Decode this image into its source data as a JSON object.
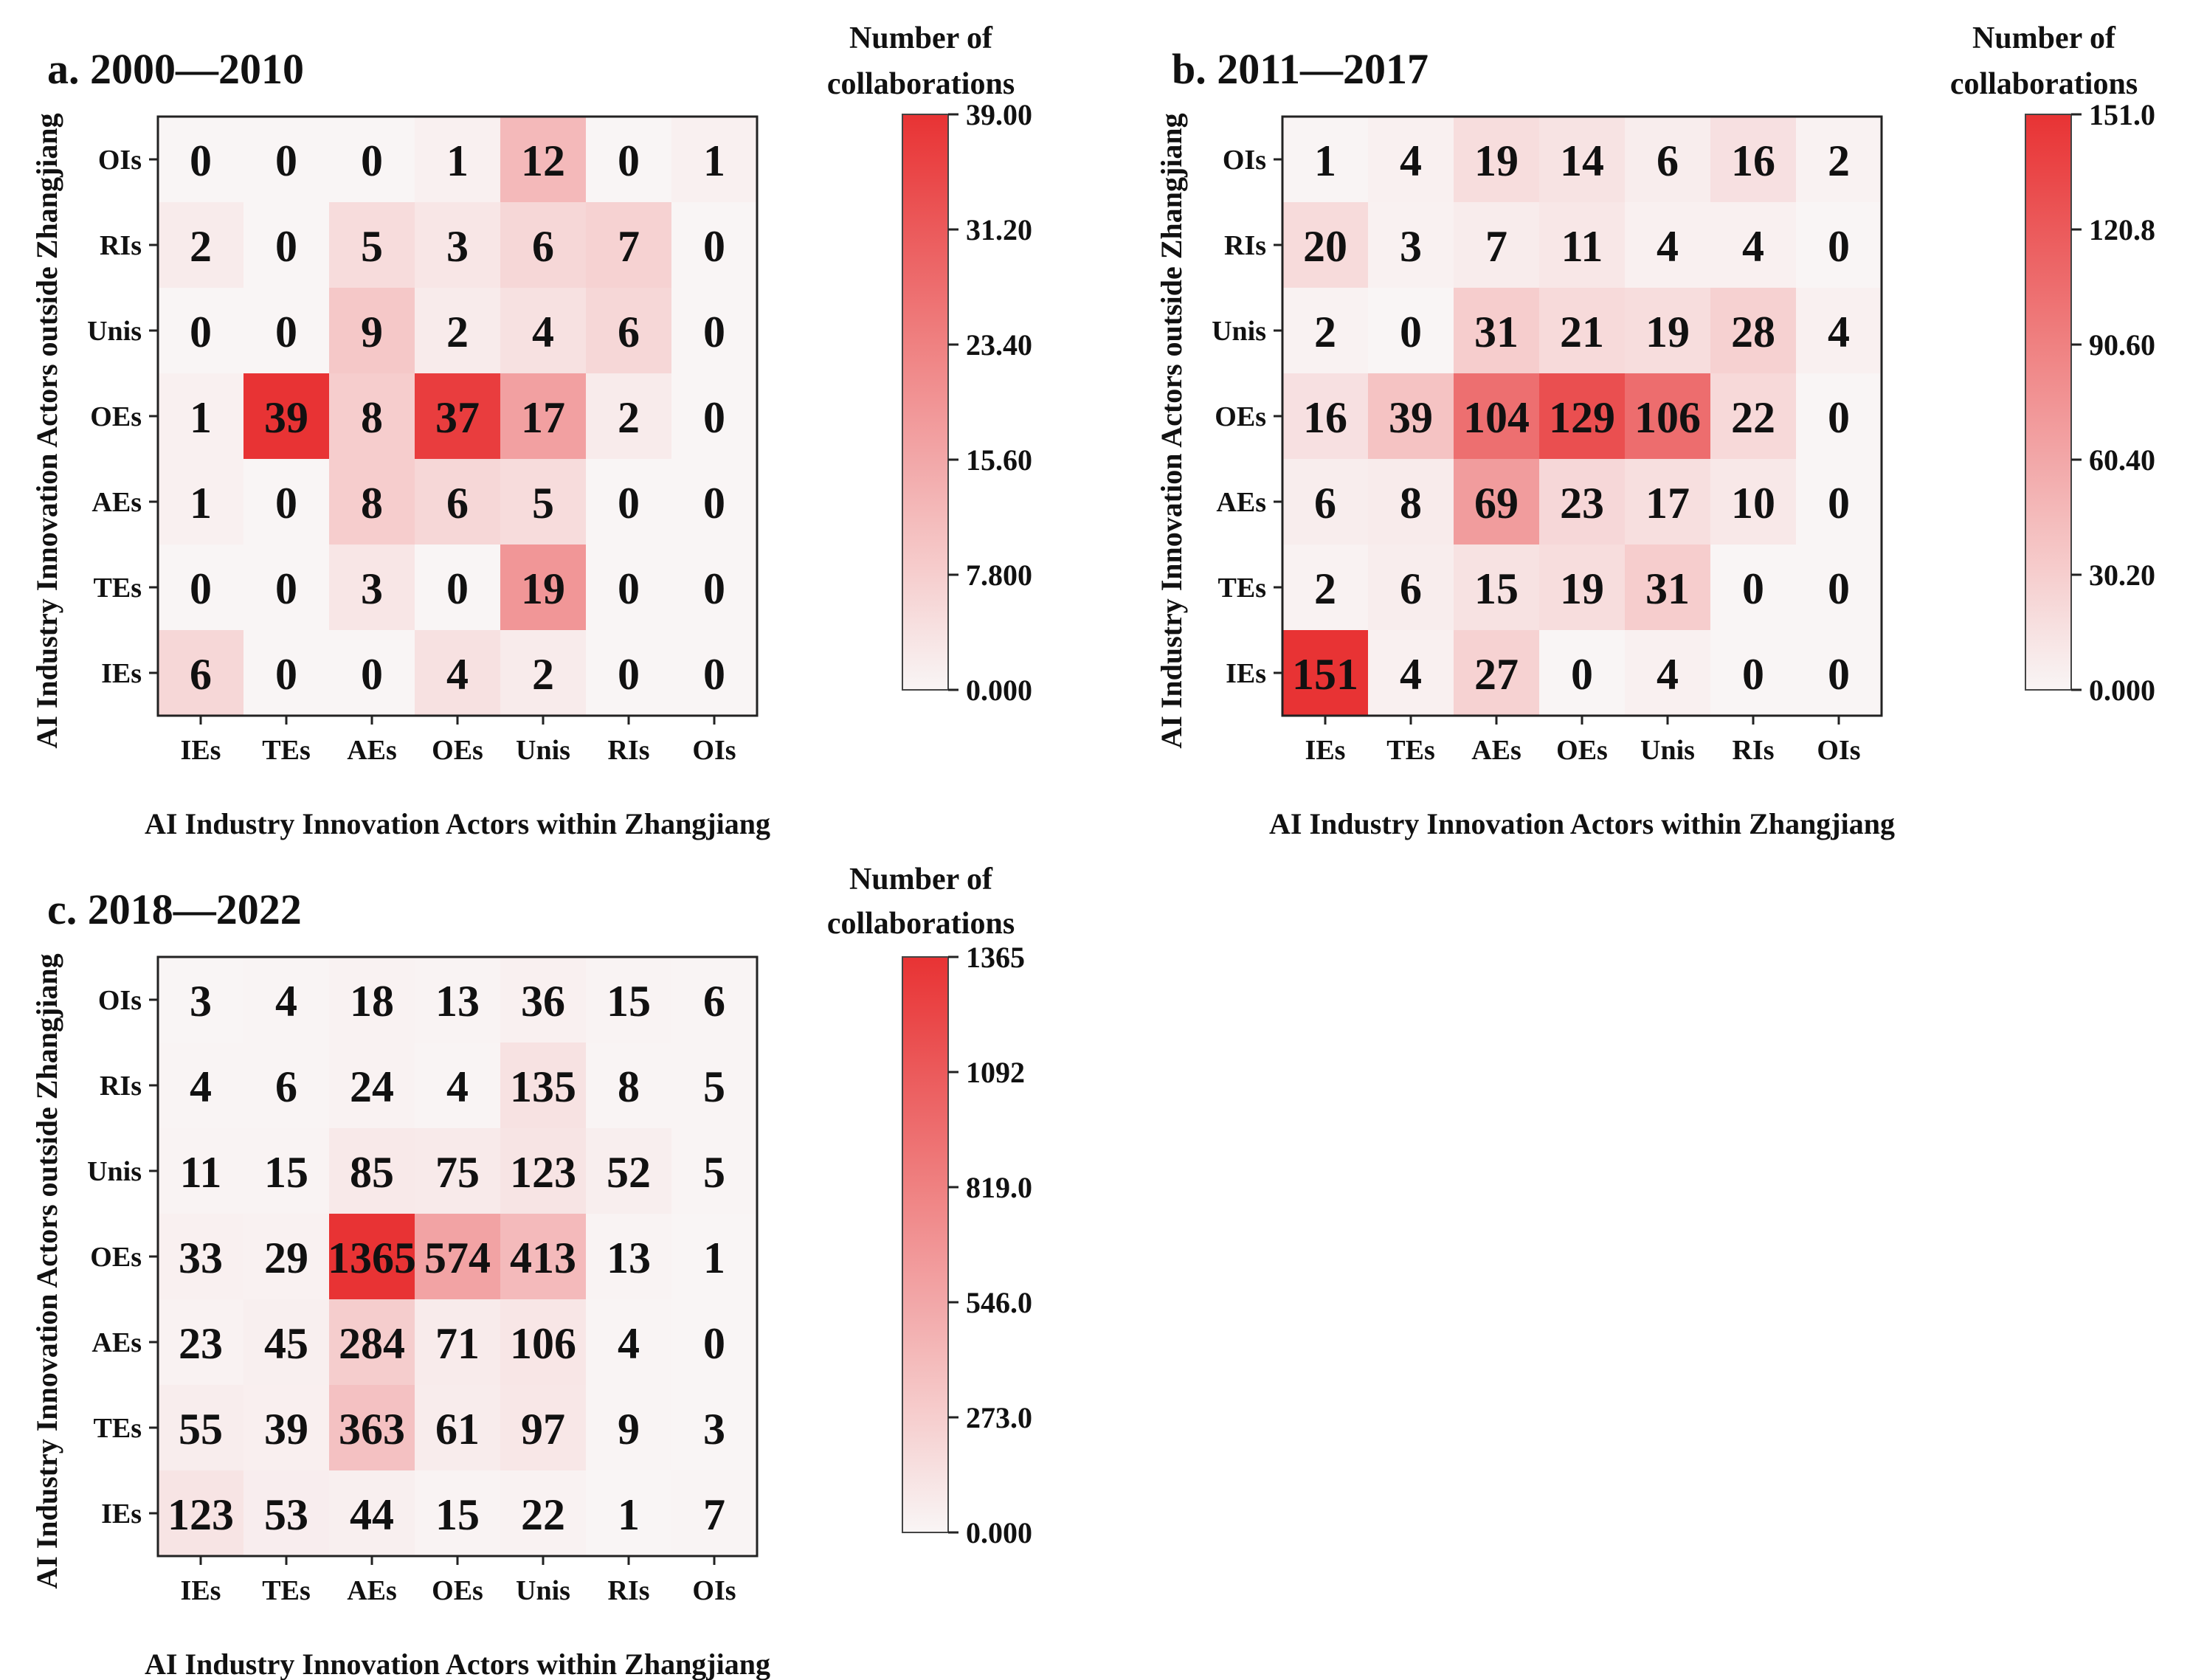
{
  "colors": {
    "low": "#f9f5f5",
    "high": "#e83334"
  },
  "chart_data": [
    {
      "type": "heatmap",
      "title": "a. 2000—2010",
      "xlabel": "AI Industry Innovation Actors within Zhangjiang",
      "ylabel": "AI Industry Innovation Actors outside Zhangjiang",
      "x_categories": [
        "IEs",
        "TEs",
        "AEs",
        "OEs",
        "Unis",
        "RIs",
        "OIs"
      ],
      "y_categories": [
        "OIs",
        "RIs",
        "Unis",
        "OEs",
        "AEs",
        "TEs",
        "IEs"
      ],
      "values": [
        [
          0,
          0,
          0,
          1,
          12,
          0,
          1
        ],
        [
          2,
          0,
          5,
          3,
          6,
          7,
          0
        ],
        [
          0,
          0,
          9,
          2,
          4,
          6,
          0
        ],
        [
          1,
          39,
          8,
          37,
          17,
          2,
          0
        ],
        [
          1,
          0,
          8,
          6,
          5,
          0,
          0
        ],
        [
          0,
          0,
          3,
          0,
          19,
          0,
          0
        ],
        [
          6,
          0,
          0,
          4,
          2,
          0,
          0
        ]
      ],
      "colorbar": {
        "label_line1": "Number of",
        "label_line2": "collaborations",
        "range": [
          0,
          39
        ],
        "ticks": [
          "39.00",
          "31.20",
          "23.40",
          "15.60",
          "7.800",
          "0.000"
        ]
      }
    },
    {
      "type": "heatmap",
      "title": "b. 2011—2017",
      "xlabel": "AI Industry Innovation Actors within Zhangjiang",
      "ylabel": "AI Industry Innovation Actors outside Zhangjiang",
      "x_categories": [
        "IEs",
        "TEs",
        "AEs",
        "OEs",
        "Unis",
        "RIs",
        "OIs"
      ],
      "y_categories": [
        "OIs",
        "RIs",
        "Unis",
        "OEs",
        "AEs",
        "TEs",
        "IEs"
      ],
      "values": [
        [
          1,
          4,
          19,
          14,
          6,
          16,
          2
        ],
        [
          20,
          3,
          7,
          11,
          4,
          4,
          0
        ],
        [
          2,
          0,
          31,
          21,
          19,
          28,
          4
        ],
        [
          16,
          39,
          104,
          129,
          106,
          22,
          0
        ],
        [
          6,
          8,
          69,
          23,
          17,
          10,
          0
        ],
        [
          2,
          6,
          15,
          19,
          31,
          0,
          0
        ],
        [
          151,
          4,
          27,
          0,
          4,
          0,
          0
        ]
      ],
      "colorbar": {
        "label_line1": "Number of",
        "label_line2": "collaborations",
        "range": [
          0,
          151
        ],
        "ticks": [
          "151.0",
          "120.8",
          "90.60",
          "60.40",
          "30.20",
          "0.000"
        ]
      }
    },
    {
      "type": "heatmap",
      "title": "c. 2018—2022",
      "xlabel": "AI Industry Innovation Actors within Zhangjiang",
      "ylabel": "AI Industry Innovation Actors outside Zhangjiang",
      "x_categories": [
        "IEs",
        "TEs",
        "AEs",
        "OEs",
        "Unis",
        "RIs",
        "OIs"
      ],
      "y_categories": [
        "OIs",
        "RIs",
        "Unis",
        "OEs",
        "AEs",
        "TEs",
        "IEs"
      ],
      "values": [
        [
          3,
          4,
          18,
          13,
          36,
          15,
          6
        ],
        [
          4,
          6,
          24,
          4,
          135,
          8,
          5
        ],
        [
          11,
          15,
          85,
          75,
          123,
          52,
          5
        ],
        [
          33,
          29,
          1365,
          574,
          413,
          13,
          1
        ],
        [
          23,
          45,
          284,
          71,
          106,
          4,
          0
        ],
        [
          55,
          39,
          363,
          61,
          97,
          9,
          3
        ],
        [
          123,
          53,
          44,
          15,
          22,
          1,
          7
        ]
      ],
      "colorbar": {
        "label_line1": "Number of",
        "label_line2": "collaborations",
        "range": [
          0,
          1365
        ],
        "ticks": [
          "1365",
          "1092",
          "819.0",
          "546.0",
          "273.0",
          "0.000"
        ]
      }
    }
  ]
}
